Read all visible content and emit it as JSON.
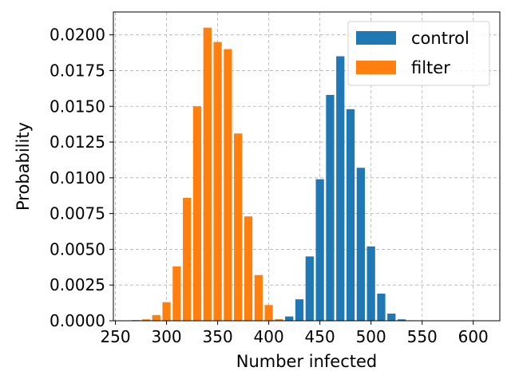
{
  "chart_data": {
    "type": "bar",
    "title": "",
    "xlabel": "Number infected",
    "ylabel": "Probability",
    "xlim": [
      248,
      626
    ],
    "ylim": [
      0,
      0.0216
    ],
    "xticks": [
      250,
      300,
      350,
      400,
      450,
      500,
      550,
      600
    ],
    "yticks": [
      0,
      0.0025,
      0.005,
      0.0075,
      0.01,
      0.0125,
      0.015,
      0.0175,
      0.02
    ],
    "ytick_labels": [
      "0.0000",
      "0.0025",
      "0.0050",
      "0.0075",
      "0.0100",
      "0.0125",
      "0.0150",
      "0.0175",
      "0.0200"
    ],
    "bar_width": 8,
    "grid": true,
    "legend_position": "top-right",
    "series": [
      {
        "name": "control",
        "color": "#1f77b4",
        "x": [
          400,
          410,
          420,
          430,
          440,
          450,
          460,
          470,
          480,
          490,
          500,
          510,
          520,
          530,
          540,
          550
        ],
        "values": [
          5e-05,
          0.0001,
          0.0003,
          0.0015,
          0.0045,
          0.0099,
          0.0158,
          0.0185,
          0.0148,
          0.0107,
          0.0052,
          0.0019,
          0.0005,
          0.0001,
          3e-05,
          1e-05
        ]
      },
      {
        "name": "filter",
        "color": "#ff7f0e",
        "x": [
          270,
          280,
          290,
          300,
          310,
          320,
          330,
          340,
          350,
          360,
          370,
          380,
          390,
          400,
          410
        ],
        "values": [
          5e-05,
          0.0001,
          0.0004,
          0.0013,
          0.0038,
          0.0086,
          0.015,
          0.0205,
          0.0195,
          0.019,
          0.0131,
          0.0073,
          0.0032,
          0.0011,
          0.0001
        ]
      }
    ]
  }
}
